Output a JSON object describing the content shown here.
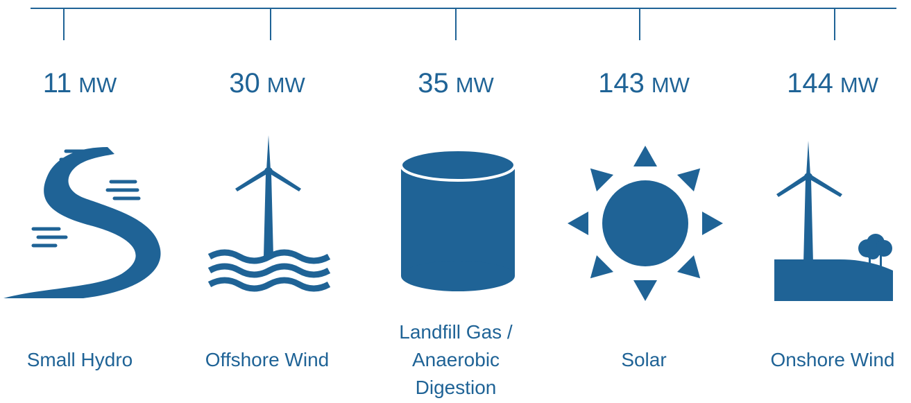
{
  "unit": "MW",
  "items": [
    {
      "value": 11,
      "label": "Small Hydro"
    },
    {
      "value": 30,
      "label": "Offshore Wind"
    },
    {
      "value": 35,
      "label": "Landfill Gas / Anaerobic Digestion"
    },
    {
      "value": 143,
      "label": "Solar"
    },
    {
      "value": 144,
      "label": "Onshore Wind"
    }
  ]
}
